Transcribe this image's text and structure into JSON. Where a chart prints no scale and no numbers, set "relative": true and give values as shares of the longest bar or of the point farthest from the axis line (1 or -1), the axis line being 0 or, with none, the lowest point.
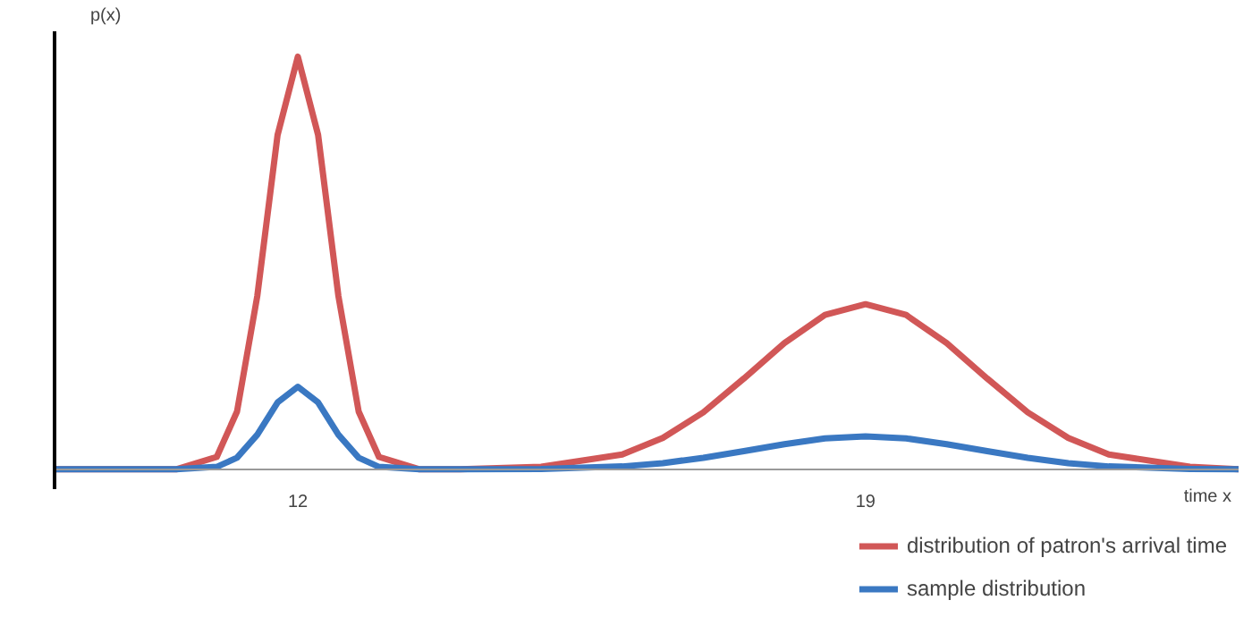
{
  "chart_data": {
    "type": "line",
    "relative": true,
    "ylabel": "p(x)",
    "xlabel": "time x",
    "x": [
      9,
      10,
      10.5,
      11,
      11.25,
      11.5,
      11.75,
      12,
      12.25,
      12.5,
      12.75,
      13,
      13.5,
      14,
      15,
      16,
      16.5,
      17,
      17.5,
      18,
      18.5,
      19,
      19.5,
      20,
      20.5,
      21,
      21.5,
      22,
      23,
      23.6
    ],
    "xlim": [
      9,
      23.6
    ],
    "xticks": [
      12,
      19
    ],
    "grid": false,
    "legend": "bottom right",
    "marker": "none",
    "line_style": "solid",
    "series": [
      {
        "name": "distribution of patron's arrival time",
        "color": "#d15757",
        "values": [
          0,
          0,
          0,
          0.03,
          0.14,
          0.42,
          0.81,
          1,
          0.81,
          0.42,
          0.14,
          0.03,
          0,
          0,
          0.006,
          0.036,
          0.076,
          0.138,
          0.22,
          0.306,
          0.374,
          0.4,
          0.374,
          0.306,
          0.22,
          0.138,
          0.076,
          0.036,
          0.006,
          0
        ]
      },
      {
        "name": "sample distribution",
        "color": "#3a78c2",
        "values": [
          0,
          0,
          0,
          0.006,
          0.028,
          0.084,
          0.162,
          0.2,
          0.162,
          0.084,
          0.028,
          0.006,
          0,
          0,
          0.001,
          0.007,
          0.015,
          0.028,
          0.044,
          0.061,
          0.075,
          0.08,
          0.075,
          0.061,
          0.044,
          0.028,
          0.015,
          0.007,
          0.001,
          0
        ]
      }
    ]
  }
}
